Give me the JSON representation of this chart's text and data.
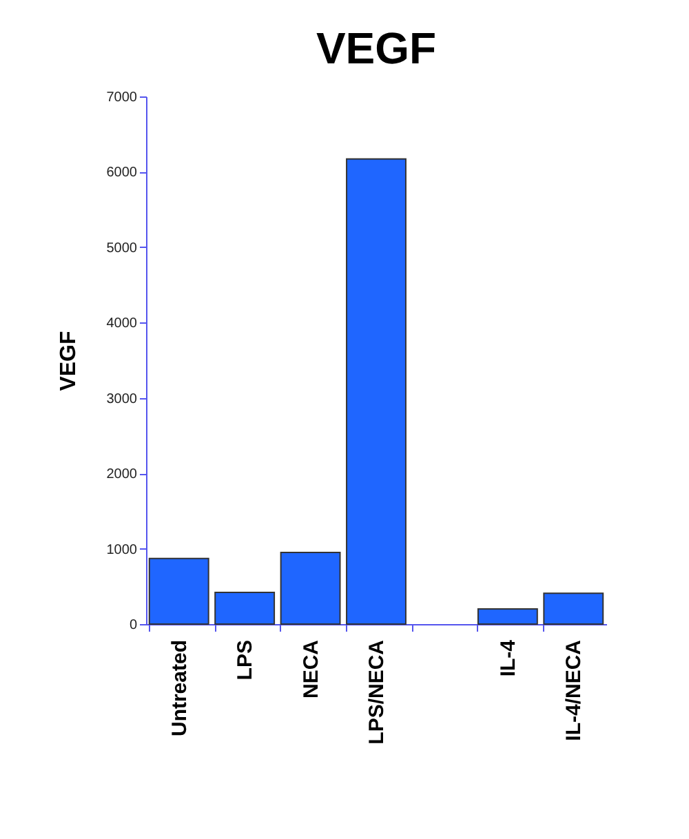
{
  "chart_data": {
    "type": "bar",
    "title": "VEGF",
    "ylabel": "VEGF",
    "categories": [
      "Untreated",
      "LPS",
      "NECA",
      "LPS/NECA",
      null,
      "IL-4",
      "IL-4/NECA"
    ],
    "values": [
      870,
      420,
      950,
      6170,
      null,
      200,
      410
    ],
    "color": "#1f66ff",
    "ylim": [
      0,
      7000
    ],
    "yticks": [
      0,
      1000,
      2000,
      3000,
      4000,
      5000,
      6000,
      7000
    ],
    "grid": false
  }
}
